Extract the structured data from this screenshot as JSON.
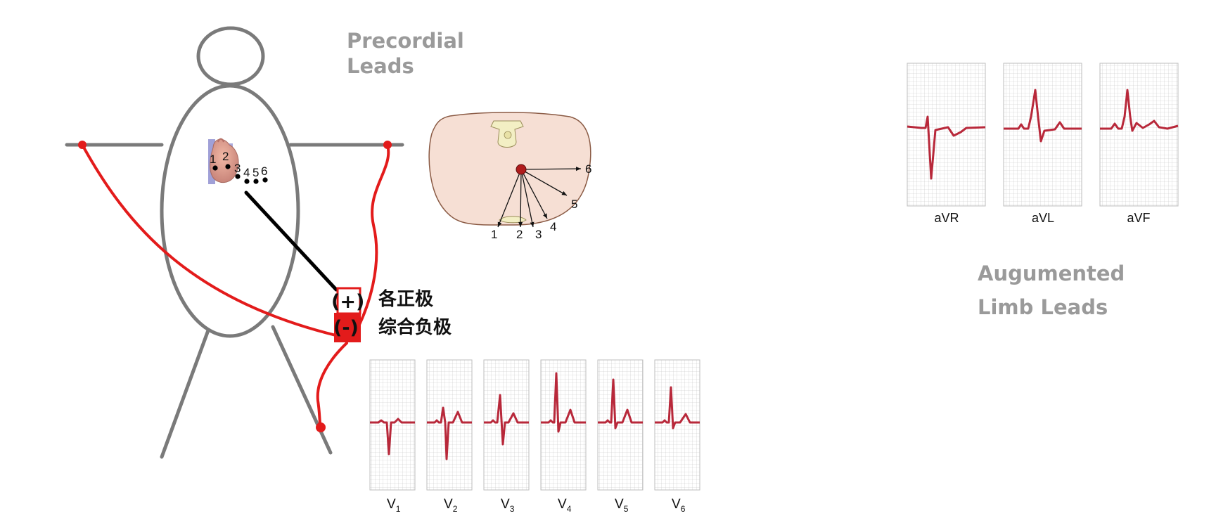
{
  "titles": {
    "precordial_line1": "Precordial",
    "precordial_line2": "Leads",
    "augmented_line1": "Augumented",
    "augmented_line2": "Limb Leads"
  },
  "electrodes": {
    "positive_symbol": "(+)",
    "positive_label": "各正极",
    "negative_symbol": "(-)",
    "negative_label": "综合负极"
  },
  "chest_positions": [
    "1",
    "2",
    "3",
    "4",
    "5",
    "6"
  ],
  "cross_section_numbers": [
    "1",
    "2",
    "3",
    "4",
    "5",
    "6"
  ],
  "precordial_leads": [
    {
      "label": "V",
      "sub": "1"
    },
    {
      "label": "V",
      "sub": "2"
    },
    {
      "label": "V",
      "sub": "3"
    },
    {
      "label": "V",
      "sub": "4"
    },
    {
      "label": "V",
      "sub": "5"
    },
    {
      "label": "V",
      "sub": "6"
    }
  ],
  "augmented_leads": [
    {
      "label": "aVR"
    },
    {
      "label": "aVL"
    },
    {
      "label": "aVF"
    }
  ],
  "colors": {
    "wire_red": "#e31b1b",
    "ecg_trace": "#b8283a",
    "grid_line": "#bdbdbd",
    "body_outline": "#7a7a7a",
    "title_gray": "#9a9a9a"
  }
}
